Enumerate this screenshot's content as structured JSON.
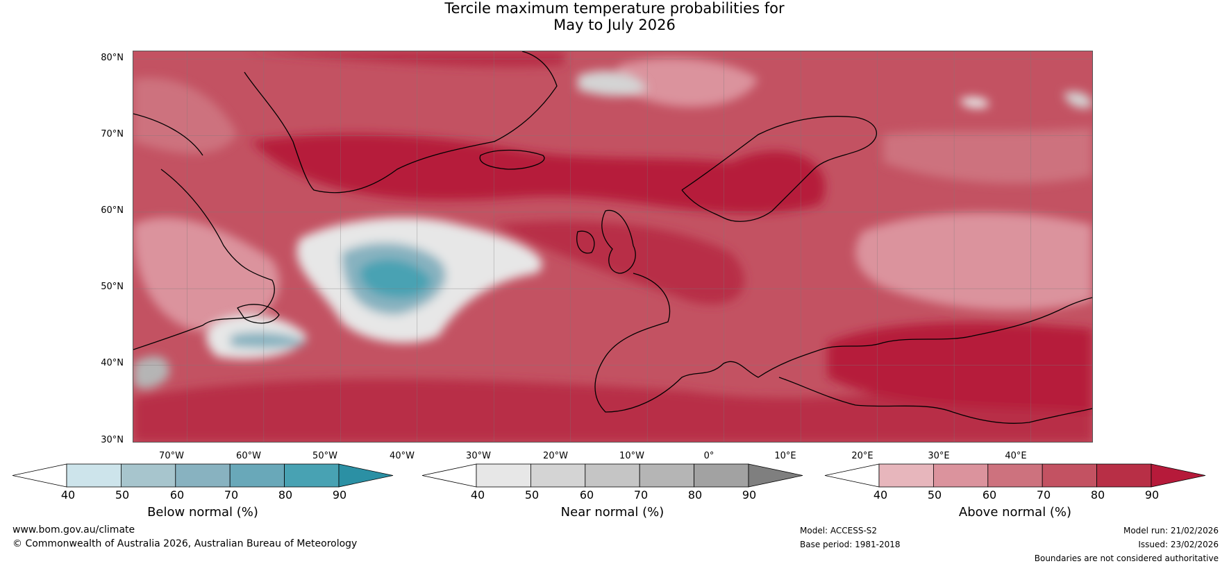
{
  "title": {
    "line1": "Tercile maximum temperature probabilities for",
    "line2": "May to July 2026"
  },
  "map": {
    "lat_labels": [
      "80°N",
      "70°N",
      "60°N",
      "50°N",
      "40°N",
      "30°N"
    ],
    "lon_labels": [
      "70°W",
      "60°W",
      "50°W",
      "40°W",
      "30°W",
      "20°W",
      "10°W",
      "0°",
      "10°E",
      "20°E",
      "30°E",
      "40°E"
    ],
    "extent": {
      "lon_min": -77,
      "lon_max": 48,
      "lat_min": 30,
      "lat_max": 81
    }
  },
  "colorbars": [
    {
      "label": "Below normal (%)",
      "ticks": [
        "40",
        "50",
        "60",
        "70",
        "80",
        "90"
      ],
      "colors": [
        "#ffffff",
        "#cde4eb",
        "#a7c5cd",
        "#88b2c0",
        "#69a8b9",
        "#48a2b3",
        "#2b90a4"
      ]
    },
    {
      "label": "Near normal (%)",
      "ticks": [
        "40",
        "50",
        "60",
        "70",
        "80",
        "90"
      ],
      "colors": [
        "#ffffff",
        "#e7e7e7",
        "#d4d4d4",
        "#c5c5c5",
        "#b5b5b5",
        "#a2a2a2",
        "#7f7f7f"
      ]
    },
    {
      "label": "Above normal (%)",
      "ticks": [
        "40",
        "50",
        "60",
        "70",
        "80",
        "90"
      ],
      "colors": [
        "#ffffff",
        "#e7b6bc",
        "#db939d",
        "#cd727e",
        "#c35262",
        "#b82f46",
        "#b61a3a"
      ]
    }
  ],
  "footer": {
    "website": "www.bom.gov.au/climate",
    "copyright": "© Commonwealth of Australia 2026, Australian Bureau of Meteorology",
    "model": "Model: ACCESS-S2",
    "base_period": "Base period: 1981-2018",
    "model_run": "Model run: 21/02/2026",
    "issued": "Issued: 23/02/2026",
    "disclaimer": "Boundaries are not considered authoritative"
  }
}
